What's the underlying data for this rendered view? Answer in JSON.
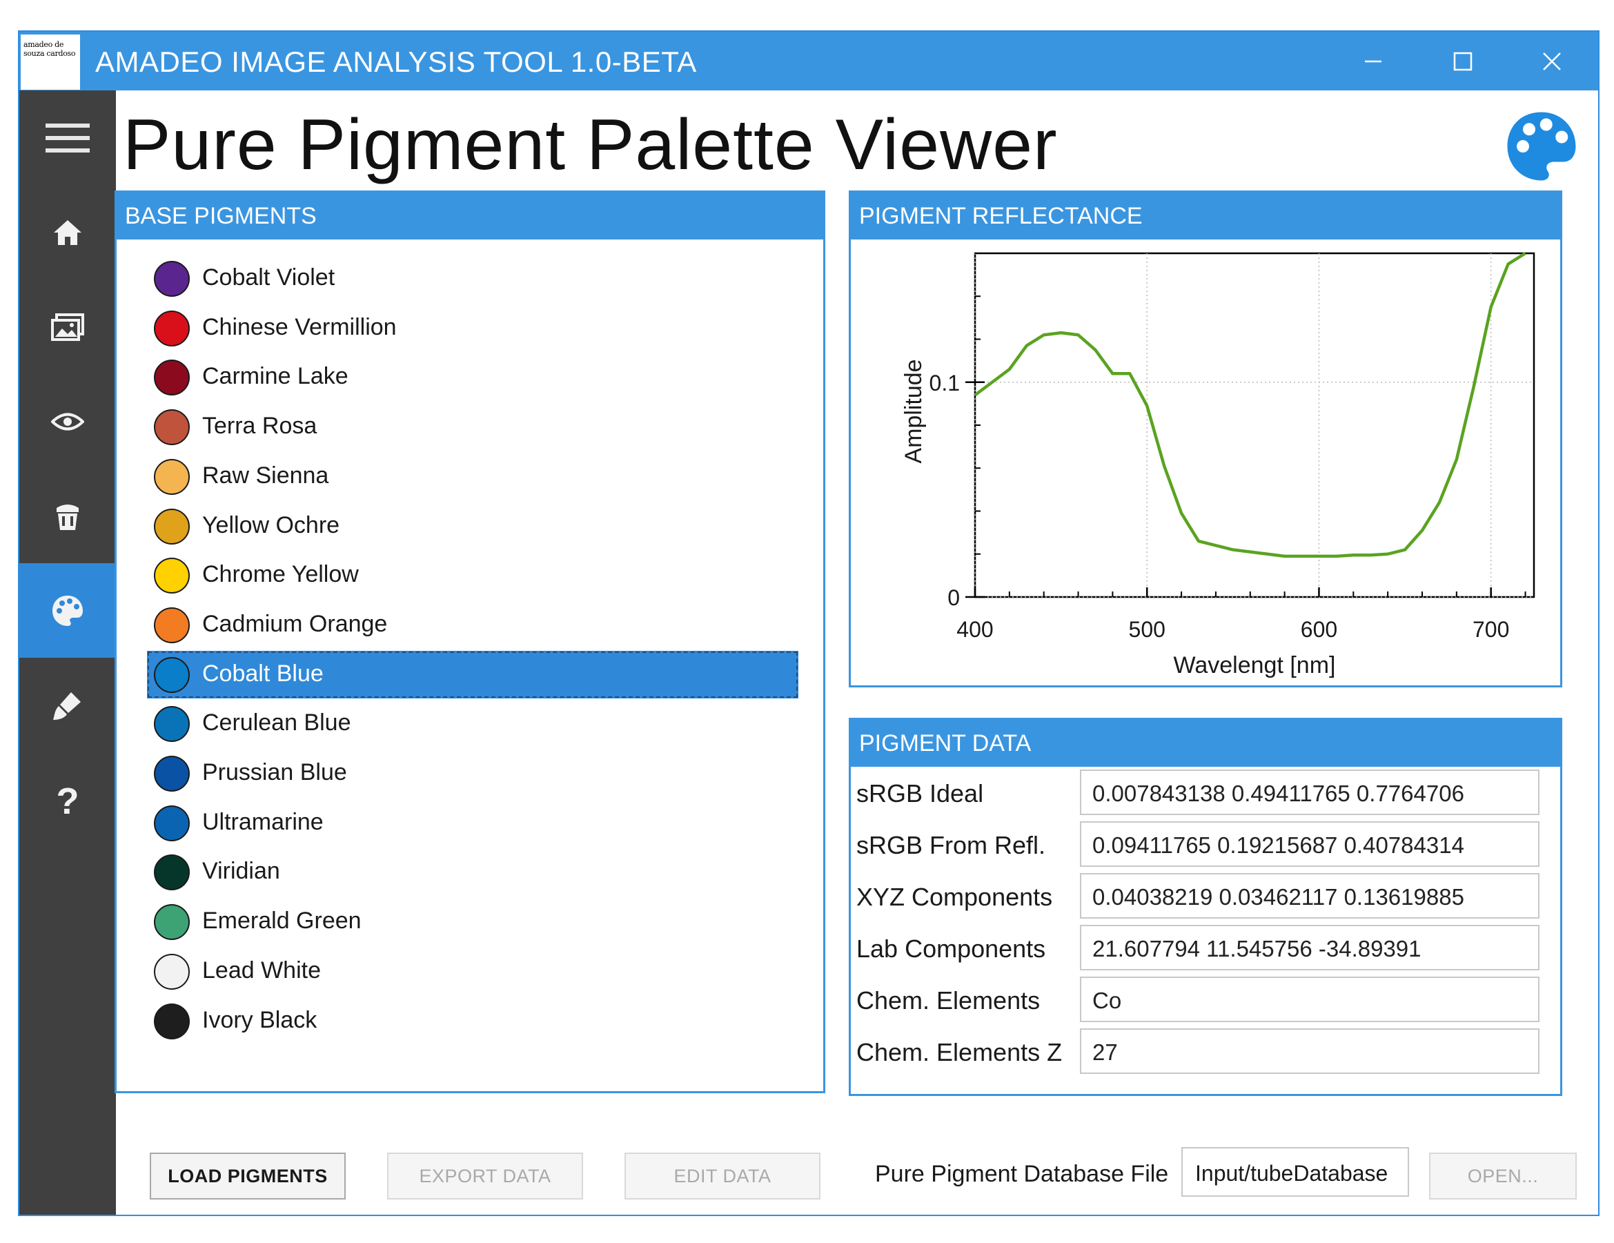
{
  "window": {
    "title": "AMADEO IMAGE ANALYSIS TOOL 1.0-BETA",
    "logo_text": "amadeo de souza cardoso"
  },
  "page": {
    "title": "Pure Pigment Palette Viewer"
  },
  "sidebar": {
    "items": [
      {
        "icon": "hamburger-icon",
        "active": false
      },
      {
        "icon": "home-icon",
        "active": false
      },
      {
        "icon": "images-icon",
        "active": false
      },
      {
        "icon": "eye-icon",
        "active": false
      },
      {
        "icon": "paint-bucket-icon",
        "active": false
      },
      {
        "icon": "palette-icon",
        "active": true
      },
      {
        "icon": "brush-icon",
        "active": false
      },
      {
        "icon": "help-icon",
        "active": false
      }
    ],
    "help_glyph": "?"
  },
  "base_pigments": {
    "header": "BASE PIGMENTS",
    "items": [
      {
        "name": "Cobalt Violet",
        "color": "#5b2590"
      },
      {
        "name": "Chinese Vermillion",
        "color": "#d9101a"
      },
      {
        "name": "Carmine Lake",
        "color": "#8c0a1e"
      },
      {
        "name": "Terra Rosa",
        "color": "#c0533b"
      },
      {
        "name": "Raw Sienna",
        "color": "#f4b44f"
      },
      {
        "name": "Yellow Ochre",
        "color": "#e0a21a"
      },
      {
        "name": "Chrome Yellow",
        "color": "#ffd100"
      },
      {
        "name": "Cadmium Orange",
        "color": "#f37c22"
      },
      {
        "name": "Cobalt Blue",
        "color": "#0a7ec8",
        "selected": true
      },
      {
        "name": "Cerulean Blue",
        "color": "#0a73b8"
      },
      {
        "name": "Prussian Blue",
        "color": "#0a52a4"
      },
      {
        "name": "Ultramarine",
        "color": "#0a64b2"
      },
      {
        "name": "Viridian",
        "color": "#06362a"
      },
      {
        "name": "Emerald Green",
        "color": "#3da274"
      },
      {
        "name": "Lead White",
        "color": "#f2f2f2"
      },
      {
        "name": "Ivory Black",
        "color": "#1e1e1e"
      }
    ]
  },
  "reflectance": {
    "header": "PIGMENT REFLECTANCE"
  },
  "chart_data": {
    "type": "line",
    "title": "",
    "xlabel": "Wavelengt [nm]",
    "ylabel": "Amplitude",
    "xlim": [
      400,
      725
    ],
    "ylim": [
      0,
      0.16
    ],
    "xticks": [
      400,
      500,
      600,
      700
    ],
    "yticks": [
      0,
      0.1
    ],
    "ytick_labels": [
      "0",
      "0.1"
    ],
    "grid": true,
    "line_color": "#5aa321",
    "series": [
      {
        "x": [
          400,
          410,
          420,
          430,
          440,
          450,
          460,
          470,
          480,
          490,
          500,
          510,
          520,
          530,
          540,
          550,
          560,
          570,
          580,
          590,
          600,
          610,
          620,
          630,
          640,
          650,
          660,
          670,
          680,
          690,
          700,
          710,
          720
        ],
        "y": [
          0.094,
          0.1,
          0.106,
          0.117,
          0.122,
          0.123,
          0.122,
          0.115,
          0.104,
          0.104,
          0.089,
          0.061,
          0.039,
          0.026,
          0.024,
          0.022,
          0.021,
          0.02,
          0.019,
          0.019,
          0.019,
          0.019,
          0.0195,
          0.0195,
          0.02,
          0.022,
          0.031,
          0.044,
          0.064,
          0.098,
          0.135,
          0.155,
          0.16
        ]
      }
    ]
  },
  "pigment_data": {
    "header": "PIGMENT DATA",
    "rows": [
      {
        "label": "sRGB Ideal",
        "value": "0.007843138 0.49411765 0.7764706"
      },
      {
        "label": "sRGB From Refl.",
        "value": "0.09411765 0.19215687 0.40784314"
      },
      {
        "label": "XYZ Components",
        "value": "0.04038219 0.03462117 0.13619885"
      },
      {
        "label": "Lab Components",
        "value": "21.607794 11.545756 -34.89391"
      },
      {
        "label": "Chem. Elements",
        "value": "Co"
      },
      {
        "label": "Chem. Elements Z",
        "value": "27"
      }
    ]
  },
  "footer": {
    "load_label": "LOAD PIGMENTS",
    "export_label": "EXPORT DATA",
    "edit_label": "EDIT DATA",
    "db_label": "Pure Pigment Database File",
    "db_value": "Input/tubeDatabase",
    "open_label": "OPEN..."
  }
}
